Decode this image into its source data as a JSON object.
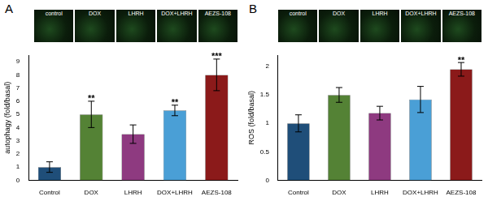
{
  "chart_data": [
    {
      "type": "bar",
      "title": "A",
      "image_labels": [
        "control",
        "DOX",
        "LHRH",
        "DOX+LHRH",
        "AEZS-108"
      ],
      "y_label": "autophagy (fold/basal)",
      "categories": [
        "Control",
        "DOX",
        "LHRH",
        "DOX+LHRH",
        "AEZS-108"
      ],
      "values": [
        1,
        5,
        3.5,
        5.3,
        8
      ],
      "errors": [
        0.4,
        1.0,
        0.7,
        0.4,
        1.2
      ],
      "significance": [
        null,
        "**",
        null,
        "**",
        "***"
      ],
      "colors": [
        "#1f4e79",
        "#548235",
        "#8e3a80",
        "#4a9fd6",
        "#8b1a1a"
      ],
      "ylim": [
        0,
        9.5
      ],
      "yticks": [
        0,
        1,
        2,
        3,
        4,
        5,
        6,
        7,
        8,
        9
      ],
      "grid": false
    },
    {
      "type": "bar",
      "title": "B",
      "image_labels": [
        "control",
        "DOX",
        "LHRH",
        "DOX+LHRH",
        "AEZS-108"
      ],
      "y_label": "ROS (fold/basal)",
      "categories": [
        "Control",
        "DOX",
        "LHRH",
        "DOX+LHRH",
        "AEZS-108"
      ],
      "values": [
        1,
        1.5,
        1.18,
        1.42,
        1.95
      ],
      "errors": [
        0.15,
        0.13,
        0.12,
        0.23,
        0.12
      ],
      "significance": [
        null,
        null,
        null,
        null,
        "**"
      ],
      "colors": [
        "#1f4e79",
        "#548235",
        "#8e3a80",
        "#4a9fd6",
        "#8b1a1a"
      ],
      "ylim": [
        0,
        2.2
      ],
      "yticks": [
        0,
        0.5,
        1,
        1.5,
        2
      ],
      "grid": false
    }
  ]
}
